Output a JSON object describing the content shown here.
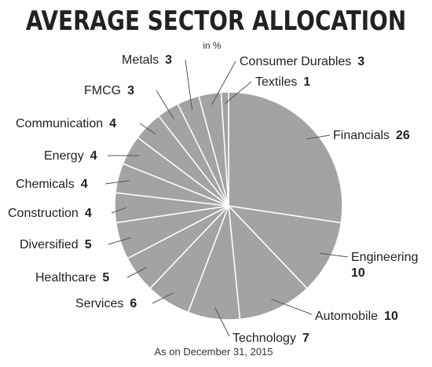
{
  "chart_data": {
    "type": "pie",
    "title": "AVERAGE SECTOR ALLOCATION",
    "subtitle": "in %",
    "footnote": "As on December 31, 2015",
    "categories": [
      "Financials",
      "Engineering",
      "Automobile",
      "Technology",
      "Services",
      "Healthcare",
      "Diversified",
      "Construction",
      "Chemicals",
      "Energy",
      "Communication",
      "FMCG",
      "Metals",
      "Consumer Durables",
      "Textiles"
    ],
    "values": [
      26,
      10,
      10,
      7,
      6,
      5,
      5,
      4,
      4,
      4,
      4,
      3,
      3,
      3,
      1
    ],
    "color": "#a3a3a3"
  }
}
